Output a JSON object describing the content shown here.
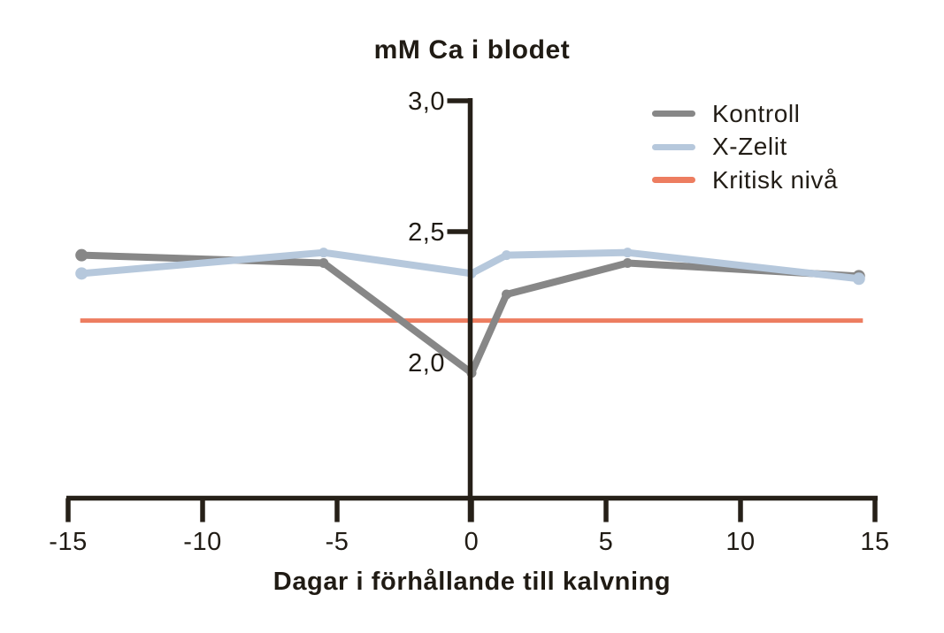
{
  "title": "mM Ca i blodet",
  "x_axis_label": "Dagar i förhållande till kalvning",
  "legend": [
    {
      "label": "Kontroll",
      "color": "#878787"
    },
    {
      "label": "X-Zelit",
      "color": "#b6c8dc"
    },
    {
      "label": "Kritisk nivå",
      "color": "#ed7d60"
    }
  ],
  "colors": {
    "axis": "#262018",
    "text": "#201b14",
    "kontroll": "#878787",
    "x_zelit": "#b6c8dc",
    "kritisk_niva": "#ed7d60"
  },
  "chart_data": {
    "type": "line",
    "title": "mM Ca i blodet",
    "xlabel": "Dagar i förhållande till kalvning",
    "ylabel": "mM Ca i blodet",
    "grid": false,
    "legend_position": "top-right",
    "xlim": [
      -15,
      15
    ],
    "x_ticks": [
      {
        "value": -15,
        "label": "-15"
      },
      {
        "value": -10,
        "label": "-10"
      },
      {
        "value": -5,
        "label": "-5"
      },
      {
        "value": 0,
        "label": "0"
      },
      {
        "value": 5,
        "label": "5"
      },
      {
        "value": 10,
        "label": "10"
      },
      {
        "value": 15,
        "label": "15"
      }
    ],
    "y_ticks": [
      {
        "value": 3.0,
        "label": "3,0",
        "tick_mark": true
      },
      {
        "value": 2.5,
        "label": "2,5",
        "tick_mark": true
      },
      {
        "value": 2.0,
        "label": "2,0",
        "tick_mark": false
      }
    ],
    "x": [
      -14.5,
      -5.5,
      0,
      1.3,
      5.8,
      14.4
    ],
    "series": [
      {
        "name": "Kontroll",
        "color": "#878787",
        "values": [
          2.41,
          2.38,
          1.96,
          2.26,
          2.38,
          2.33
        ]
      },
      {
        "name": "X-Zelit",
        "color": "#b6c8dc",
        "values": [
          2.34,
          2.42,
          2.34,
          2.41,
          2.42,
          2.32
        ]
      }
    ],
    "reference_line": {
      "name": "Kritisk nivå",
      "color": "#ed7d60",
      "value": 2.16,
      "x_start": -14.55,
      "x_end": 14.55
    }
  }
}
